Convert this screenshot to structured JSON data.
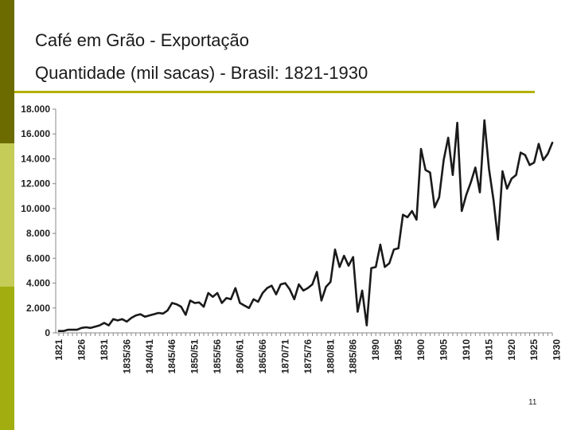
{
  "slide": {
    "title": "Café em Grão - Exportação",
    "subtitle": "Quantidade (mil sacas) - Brasil: 1821-1930",
    "page_number": "11",
    "colors": {
      "bar_dark": "#6b6b00",
      "bar_light": "#c5cc57",
      "bar_mid": "#a2ad10",
      "rule": "#b4b000",
      "line": "#1a1a1a"
    }
  },
  "chart_data": {
    "type": "line",
    "title": "",
    "xlabel": "",
    "ylabel": "",
    "ylim": [
      0,
      18000
    ],
    "yticks": [
      "0",
      "2.000",
      "4.000",
      "6.000",
      "8.000",
      "10.000",
      "12.000",
      "14.000",
      "16.000",
      "18.000"
    ],
    "ytick_values": [
      0,
      2000,
      4000,
      6000,
      8000,
      10000,
      12000,
      14000,
      16000,
      18000
    ],
    "xtick_labels": [
      "1821",
      "1826",
      "1831",
      "1835/36",
      "1840/41",
      "1845/46",
      "1850/51",
      "1855/56",
      "1860/61",
      "1865/66",
      "1870/71",
      "1875/76",
      "1880/81",
      "1885/86",
      "1890",
      "1895",
      "1900",
      "1905",
      "1910",
      "1915",
      "1920",
      "1925",
      "1930"
    ],
    "grid": false,
    "series": [
      {
        "values": [
          150,
          150,
          250,
          250,
          250,
          400,
          450,
          400,
          500,
          600,
          800,
          600,
          1100,
          1000,
          1100,
          900,
          1200,
          1400,
          1500,
          1300,
          1400,
          1500,
          1600,
          1550,
          1800,
          2400,
          2300,
          2100,
          1450,
          2600,
          2400,
          2450,
          2100,
          3200,
          2900,
          3200,
          2400,
          2800,
          2700,
          3600,
          2400,
          2200,
          2000,
          2700,
          2500,
          3200,
          3600,
          3800,
          3100,
          3900,
          4000,
          3500,
          2700,
          3900,
          3400,
          3600,
          3900,
          4900,
          2600,
          3700,
          4100,
          6700,
          5300,
          6200,
          5400,
          6100,
          1700,
          3400,
          600,
          5200,
          5300,
          7100,
          5300,
          5600,
          6700,
          6800,
          9500,
          9300,
          9800,
          9100,
          14800,
          13100,
          12900,
          10100,
          10900,
          13900,
          15700,
          12700,
          16900,
          9800,
          11100,
          12100,
          13300,
          11300,
          17100,
          13200,
          10700,
          7500,
          13000,
          11600,
          12400,
          12700,
          14500,
          14300,
          13500,
          13700,
          15200,
          13900,
          14400,
          15300
        ]
      }
    ]
  }
}
